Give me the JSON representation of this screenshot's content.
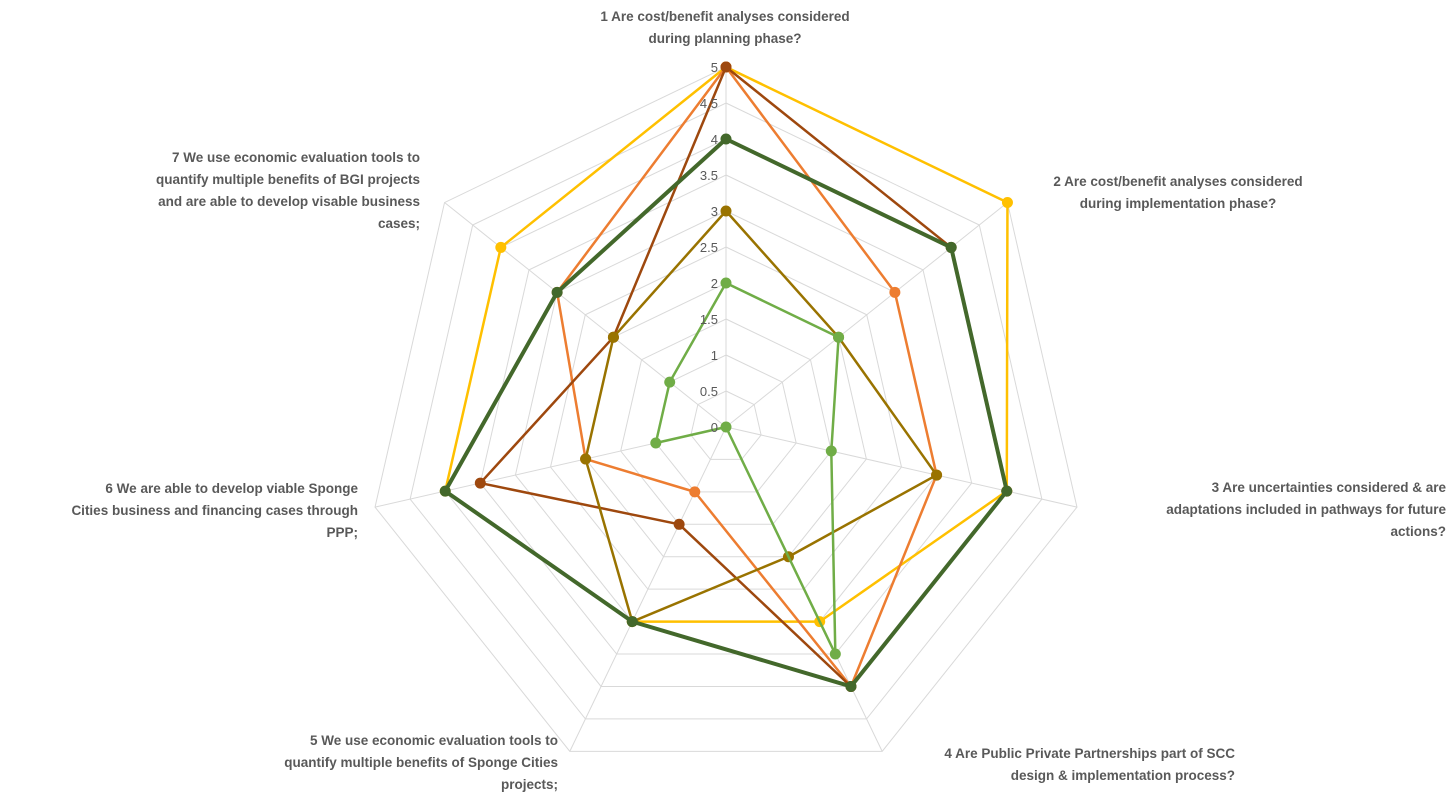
{
  "chart_data": {
    "type": "radar",
    "title": "",
    "categories": [
      "1 Are cost/benefit analyses considered\nduring planning  phase?",
      "2 Are cost/benefit analyses considered\nduring  implementation phase?",
      "3 Are uncertainties considered & are\nadaptations included in pathways for future\nactions?",
      "4  Are Public Private Partnerships part of SCC\ndesign & implementation process?",
      "5 We use economic evaluation tools to\nquantify multiple benefits of Sponge Cities\nprojects;",
      "6 We are able to develop viable Sponge\nCities  business and financing cases through\nPPP;",
      "7 We use economic evaluation tools to\nquantify multiple benefits of BGI projects\nand are able to develop visable business\ncases;"
    ],
    "ticks": [
      "0",
      "0.5",
      "1",
      "1.5",
      "2",
      "2.5",
      "3",
      "3.5",
      "4",
      "4.5",
      "5"
    ],
    "rlim": [
      0,
      5
    ],
    "grid": true,
    "legend": "none",
    "series": [
      {
        "color": "#FFC000",
        "values": [
          5,
          5,
          4,
          3,
          3,
          4,
          4
        ]
      },
      {
        "color": "#ED7D31",
        "values": [
          5,
          3,
          3,
          4,
          1,
          2,
          3
        ]
      },
      {
        "color": "#9E480E",
        "values": [
          5,
          4,
          4,
          4,
          1.5,
          3.5,
          2
        ]
      },
      {
        "color": "#997300",
        "values": [
          3,
          2,
          3,
          2,
          3,
          2,
          2
        ]
      },
      {
        "color": "#70AD47",
        "values": [
          2,
          2,
          1.5,
          3.5,
          0,
          1,
          1
        ]
      },
      {
        "color": "#43682B",
        "values": [
          4,
          4,
          4,
          4,
          3,
          4,
          3
        ]
      }
    ]
  }
}
